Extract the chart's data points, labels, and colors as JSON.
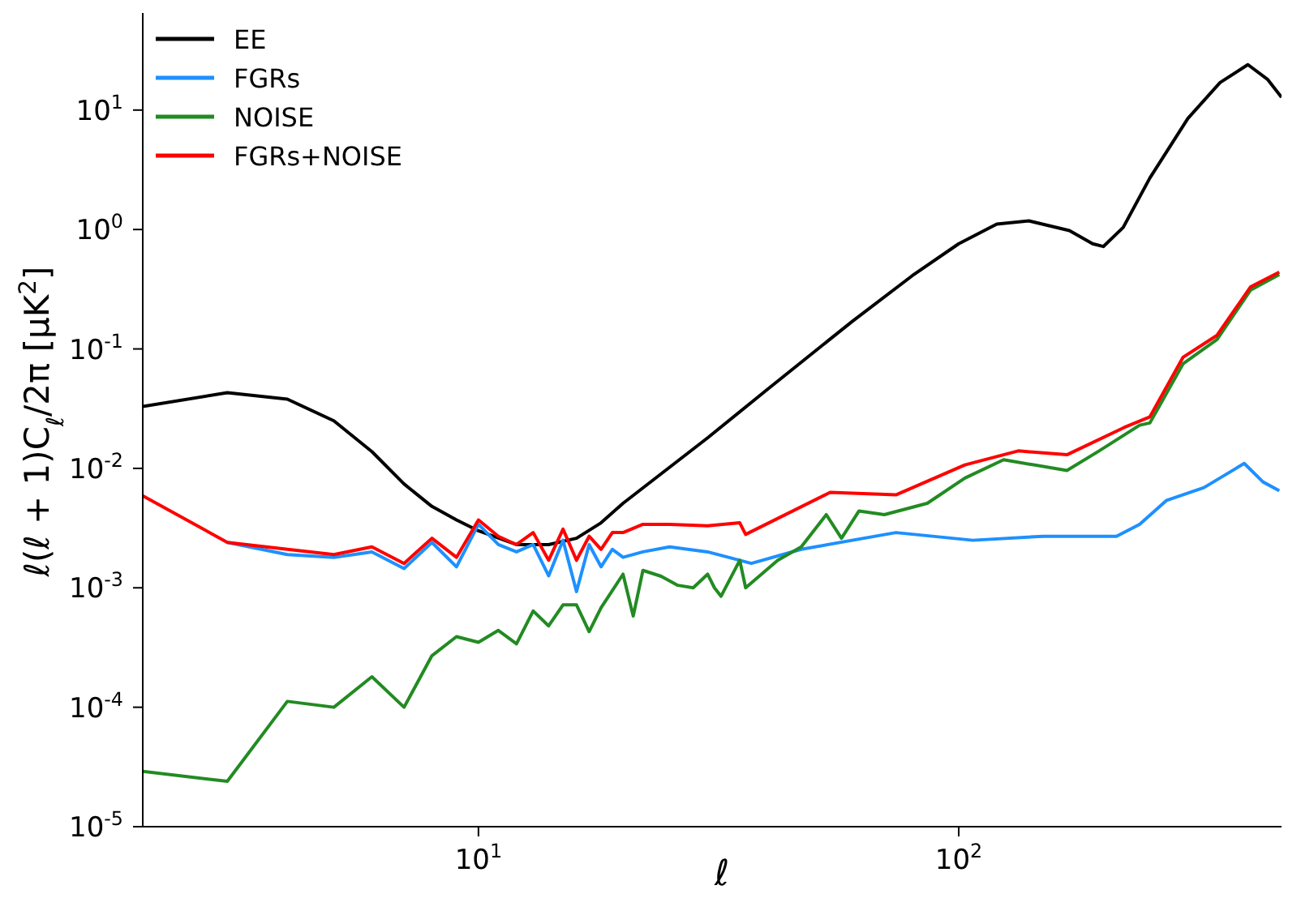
{
  "chart_data": {
    "type": "line",
    "xlabel": "ℓ",
    "ylabel": "ℓ(ℓ + 1)C$_{ℓ}$/2π [μK$^{2}$]",
    "log": "xy",
    "legend": "top left",
    "grid": false,
    "marker": "none",
    "line_style": "solid",
    "xlim": [
      2,
      470
    ],
    "ylim": [
      1e-05,
      65
    ],
    "xticks": [
      {
        "value": 10,
        "label": "10$^{1}$"
      },
      {
        "value": 100,
        "label": "10$^{2}$"
      }
    ],
    "yticks": [
      {
        "value": 1e-05,
        "label": "10$^{-5}$"
      },
      {
        "value": 0.0001,
        "label": "10$^{-4}$"
      },
      {
        "value": 0.001,
        "label": "10$^{-3}$"
      },
      {
        "value": 0.01,
        "label": "10$^{-2}$"
      },
      {
        "value": 0.1,
        "label": "10$^{-1}$"
      },
      {
        "value": 1,
        "label": "10$^{0}$"
      },
      {
        "value": 10,
        "label": "10$^{1}$"
      }
    ],
    "series": [
      {
        "name": "EE",
        "color": "#000000",
        "x": [
          2,
          3,
          4,
          5,
          6,
          7,
          8,
          9,
          10,
          12,
          14,
          16,
          18,
          20,
          30,
          40,
          60,
          80,
          100,
          120,
          140,
          170,
          190,
          200,
          220,
          250,
          300,
          350,
          400,
          440,
          470
        ],
        "values": [
          0.033,
          0.043,
          0.038,
          0.025,
          0.0138,
          0.0074,
          0.0048,
          0.0037,
          0.003,
          0.0023,
          0.0023,
          0.0026,
          0.0035,
          0.0051,
          0.018,
          0.046,
          0.17,
          0.41,
          0.76,
          1.11,
          1.18,
          0.98,
          0.76,
          0.72,
          1.04,
          2.7,
          8.5,
          17,
          24,
          18,
          12.8
        ]
      },
      {
        "name": "FGRs",
        "color": "#1e90ff",
        "x": [
          3,
          4,
          5,
          6,
          7,
          8,
          9,
          10,
          11,
          12,
          13,
          14,
          15,
          16,
          17,
          18,
          19,
          20,
          22,
          25,
          30,
          37,
          47,
          74,
          107,
          150,
          213,
          238,
          271,
          324,
          378,
          393,
          430,
          465
        ],
        "values": [
          0.0024,
          0.0019,
          0.0018,
          0.002,
          0.00145,
          0.0024,
          0.0015,
          0.0034,
          0.0023,
          0.002,
          0.0023,
          0.00126,
          0.0025,
          0.00093,
          0.0023,
          0.0015,
          0.0021,
          0.0018,
          0.002,
          0.0022,
          0.002,
          0.0016,
          0.0021,
          0.0029,
          0.0025,
          0.0027,
          0.0027,
          0.0034,
          0.0054,
          0.0069,
          0.01,
          0.011,
          0.0077,
          0.0065
        ]
      },
      {
        "name": "NOISE",
        "color": "#228b22",
        "x": [
          2,
          3,
          4,
          5,
          6,
          7,
          8,
          9,
          10,
          11,
          12,
          13,
          14,
          15,
          16,
          17,
          18,
          20,
          21,
          22,
          24,
          26,
          28,
          30,
          31,
          32,
          35,
          36,
          42,
          47,
          53,
          57,
          62,
          70,
          86,
          103,
          124,
          168,
          196,
          238,
          250,
          293,
          345,
          405,
          465
        ],
        "values": [
          2.9e-05,
          2.4e-05,
          0.000112,
          0.0001,
          0.00018,
          0.0001,
          0.00027,
          0.00039,
          0.00035,
          0.00044,
          0.00034,
          0.00064,
          0.00048,
          0.00072,
          0.00072,
          0.00043,
          0.00068,
          0.0013,
          0.00058,
          0.0014,
          0.00125,
          0.00105,
          0.001,
          0.0013,
          0.001,
          0.00085,
          0.0017,
          0.001,
          0.0017,
          0.0022,
          0.0041,
          0.0026,
          0.0044,
          0.0041,
          0.0051,
          0.0083,
          0.0118,
          0.0096,
          0.014,
          0.023,
          0.024,
          0.075,
          0.12,
          0.31,
          0.42
        ]
      },
      {
        "name": "FGRs+NOISE",
        "color": "#ff0000",
        "x": [
          2,
          3,
          4,
          5,
          6,
          7,
          8,
          9,
          10,
          11,
          12,
          13,
          14,
          15,
          16,
          17,
          18,
          19,
          20,
          22,
          25,
          30,
          35,
          36,
          54,
          74,
          103,
          133,
          168,
          221,
          250,
          293,
          345,
          405,
          465
        ],
        "values": [
          0.0059,
          0.0024,
          0.0021,
          0.0019,
          0.0022,
          0.0016,
          0.0026,
          0.0018,
          0.0037,
          0.0027,
          0.0023,
          0.0029,
          0.0017,
          0.0031,
          0.0017,
          0.0027,
          0.0021,
          0.0029,
          0.0029,
          0.0034,
          0.0034,
          0.0033,
          0.0035,
          0.0028,
          0.0063,
          0.006,
          0.0107,
          0.014,
          0.013,
          0.022,
          0.027,
          0.085,
          0.13,
          0.33,
          0.44
        ]
      }
    ]
  }
}
